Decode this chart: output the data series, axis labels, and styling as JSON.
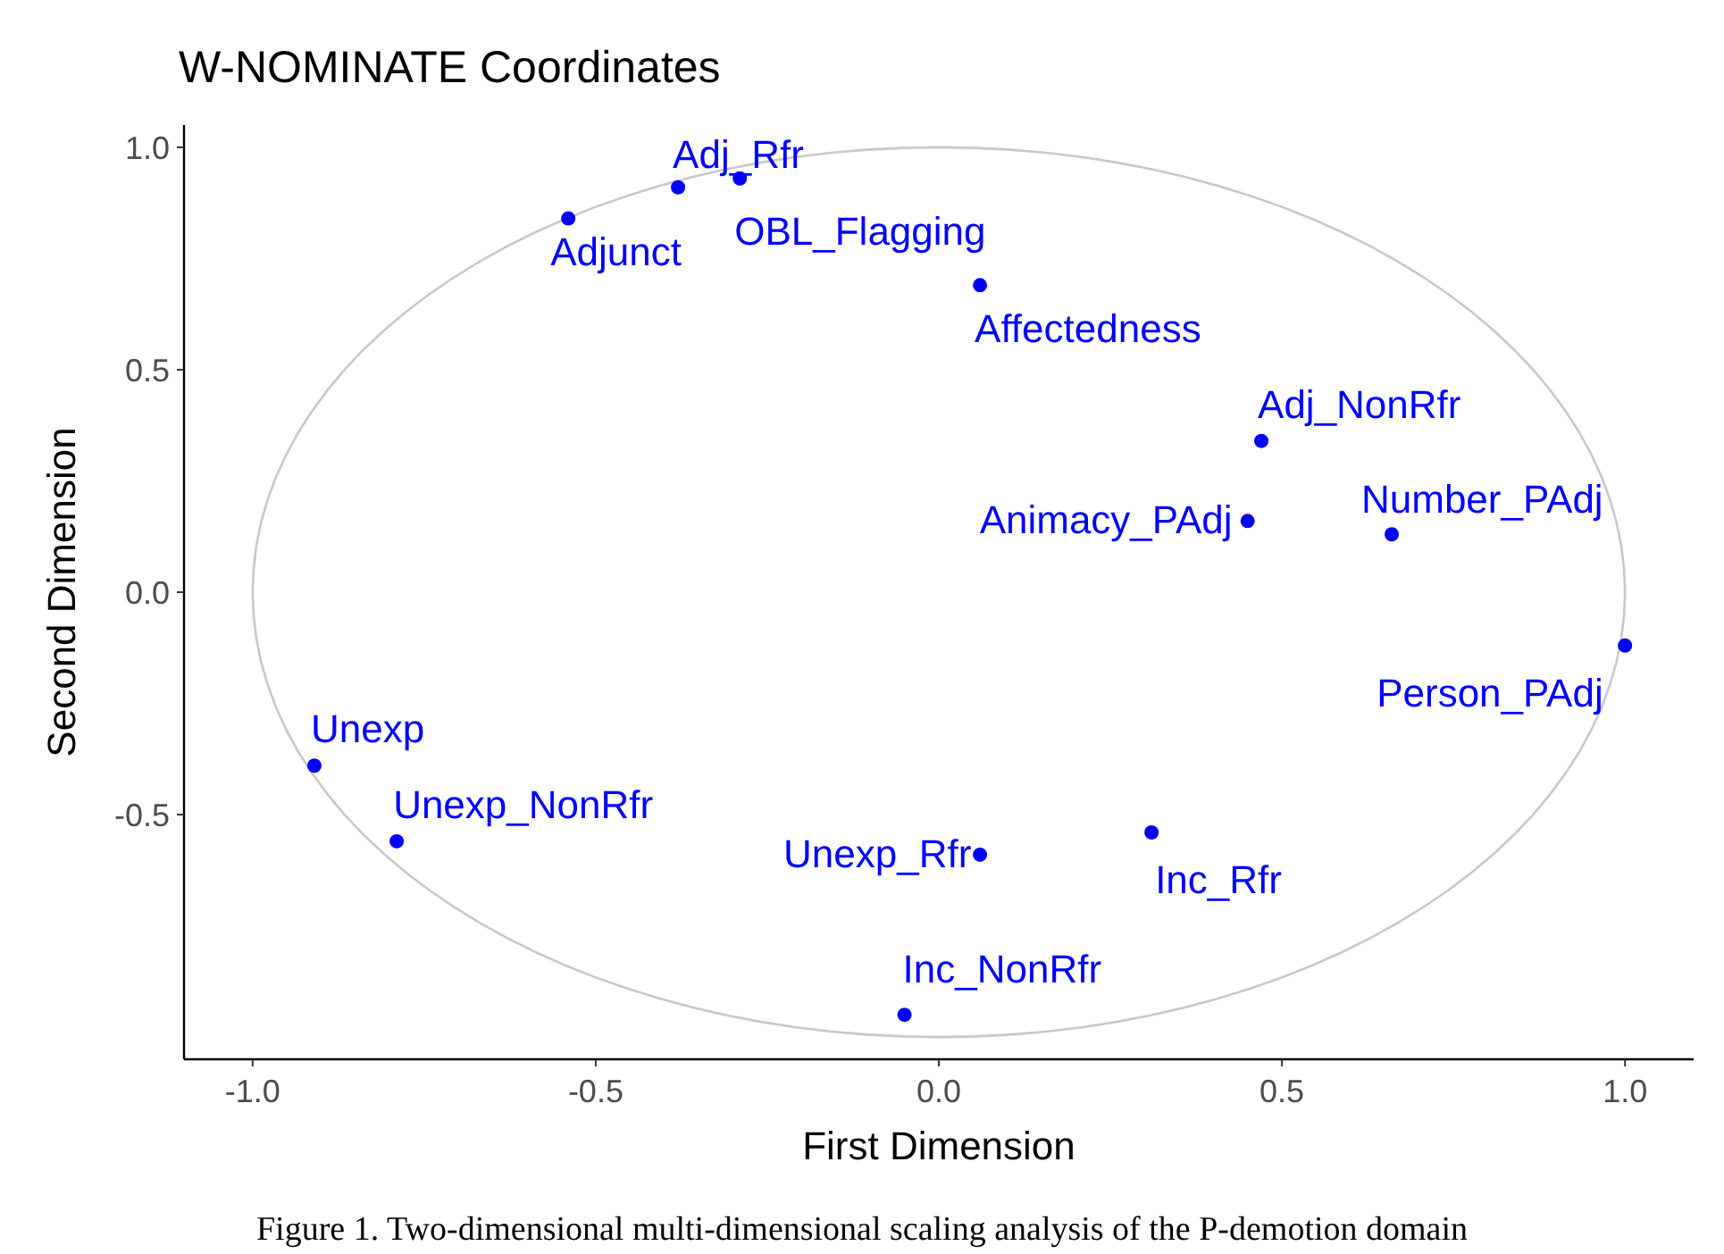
{
  "chart_data": {
    "type": "scatter",
    "title": "W-NOMINATE Coordinates",
    "xlabel": "First Dimension",
    "ylabel": "Second Dimension",
    "annotations": [
      "Figure 1. Two-dimensional multi-dimensional scaling analysis of the P-demotion domain"
    ],
    "xlim": [
      -1.1,
      1.1
    ],
    "ylim": [
      -1.05,
      1.05
    ],
    "xticks": [
      {
        "value": -1,
        "label": "-1.0"
      },
      -0.5,
      {
        "value": 0,
        "label": "0.0"
      },
      0.5,
      {
        "value": 1,
        "label": "1.0"
      }
    ],
    "yticks": [
      -0.5,
      {
        "value": 0,
        "label": "0.0"
      },
      0.5,
      {
        "value": 1,
        "label": "1.0"
      }
    ],
    "marker": "circle",
    "series": [
      {
        "name": "Adj_Rfr",
        "color": "#0000ff",
        "x": [
          -0.38
        ],
        "values": [
          0.91
        ]
      },
      {
        "name": "OBL_Flagging",
        "color": "#0000ff",
        "x": [
          -0.29
        ],
        "values": [
          0.93
        ]
      },
      {
        "name": "Adjunct",
        "color": "#0000ff",
        "x": [
          -0.54
        ],
        "values": [
          0.84
        ]
      },
      {
        "name": "Affectedness",
        "color": "#0000ff",
        "x": [
          0.06
        ],
        "values": [
          0.69
        ]
      },
      {
        "name": "Adj_NonRfr",
        "color": "#0000ff",
        "x": [
          0.47
        ],
        "values": [
          0.34
        ]
      },
      {
        "name": "Number_PAdj",
        "color": "#0000ff",
        "x": [
          0.66
        ],
        "values": [
          0.13
        ]
      },
      {
        "name": "Animacy_PAdj",
        "color": "#0000ff",
        "x": [
          0.45
        ],
        "values": [
          0.16
        ]
      },
      {
        "name": "Person_PAdj",
        "color": "#0000ff",
        "x": [
          1.0
        ],
        "values": [
          -0.12
        ]
      },
      {
        "name": "Unexp",
        "color": "#0000ff",
        "x": [
          -0.91
        ],
        "values": [
          -0.39
        ]
      },
      {
        "name": "Unexp_NonRfr",
        "color": "#0000ff",
        "x": [
          -0.79
        ],
        "values": [
          -0.56
        ]
      },
      {
        "name": "Unexp_Rfr",
        "color": "#0000ff",
        "x": [
          0.06
        ],
        "values": [
          -0.59
        ]
      },
      {
        "name": "Inc_Rfr",
        "color": "#0000ff",
        "x": [
          0.31
        ],
        "values": [
          -0.54
        ]
      },
      {
        "name": "Inc_NonRfr",
        "color": "#0000ff",
        "x": [
          -0.05
        ],
        "values": [
          -0.95
        ]
      }
    ]
  }
}
